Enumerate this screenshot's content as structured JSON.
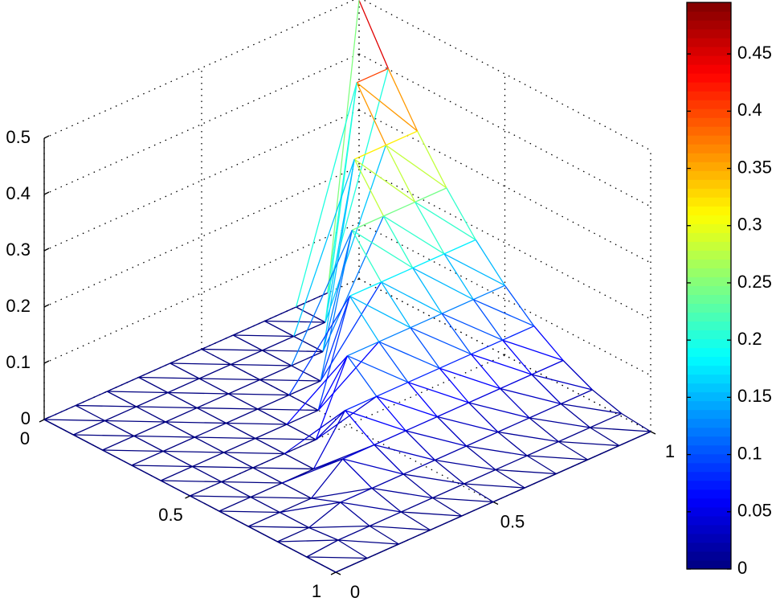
{
  "chart_data": {
    "type": "mesh3d",
    "x": [
      0,
      0.1,
      0.2,
      0.3,
      0.4,
      0.5,
      0.6,
      0.7,
      0.8,
      0.9,
      1
    ],
    "y": [
      0,
      0.1,
      0.2,
      0.3,
      0.4,
      0.5,
      0.6,
      0.7,
      0.8,
      0.9,
      1
    ],
    "z": [
      [
        0,
        0,
        0,
        0,
        0,
        0,
        0,
        0,
        0,
        0,
        0.495
      ],
      [
        0,
        0,
        0,
        0,
        0,
        0,
        0,
        0,
        0,
        0.401,
        0.401
      ],
      [
        0,
        0,
        0,
        0,
        0,
        0,
        0,
        0,
        0.317,
        0.317,
        0.317
      ],
      [
        0,
        0,
        0,
        0,
        0,
        0,
        0,
        0.243,
        0.243,
        0.243,
        0.243
      ],
      [
        0,
        0,
        0,
        0,
        0,
        0,
        0.178,
        0.178,
        0.178,
        0.178,
        0.178
      ],
      [
        0,
        0,
        0,
        0,
        0,
        0.124,
        0.124,
        0.124,
        0.124,
        0.124,
        0.124
      ],
      [
        0,
        0,
        0,
        0,
        0.079,
        0.079,
        0.079,
        0.079,
        0.079,
        0.079,
        0.079
      ],
      [
        0,
        0,
        0,
        0.045,
        0.045,
        0.045,
        0.045,
        0.045,
        0.045,
        0.045,
        0.045
      ],
      [
        0,
        0,
        0.02,
        0.02,
        0.02,
        0.02,
        0.02,
        0.02,
        0.02,
        0.02,
        0.02
      ],
      [
        0,
        0.005,
        0.005,
        0.005,
        0.005,
        0.005,
        0.005,
        0.005,
        0.005,
        0.005,
        0.005
      ],
      [
        0,
        0,
        0,
        0,
        0,
        0,
        0,
        0,
        0,
        0,
        0
      ]
    ],
    "xlim": [
      0,
      1
    ],
    "xticks": [
      0,
      0.5,
      1
    ],
    "ylim": [
      0,
      1
    ],
    "yticks": [
      0,
      0.5,
      1
    ],
    "zlim": [
      0,
      0.5
    ],
    "zticks": [
      0,
      0.1,
      0.2,
      0.3,
      0.4,
      0.5
    ],
    "clim": [
      0,
      0.495
    ],
    "colorbar_ticks": [
      0,
      0.05,
      0.1,
      0.15,
      0.2,
      0.25,
      0.3,
      0.35,
      0.4,
      0.45
    ],
    "colormap": "jet",
    "grid": true
  }
}
